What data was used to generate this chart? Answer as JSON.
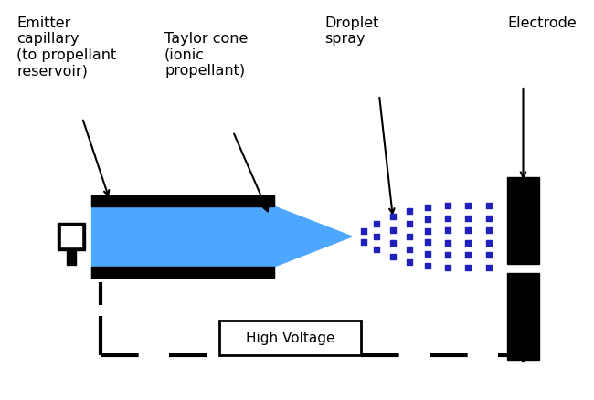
{
  "bg_color": "#ffffff",
  "blue_color": "#4da6ff",
  "black_color": "#000000",
  "dot_color": "#2020bb",
  "figsize": [
    6.5,
    4.39
  ],
  "dpi": 100,
  "labels": {
    "emitter": "Emitter\ncapillary\n(to propellant\nreservoir)",
    "taylor": "Taylor cone\n(ionic\npropellant)",
    "droplet": "Droplet\nspray",
    "electrode": "Electrode",
    "high_voltage": "High Voltage"
  }
}
